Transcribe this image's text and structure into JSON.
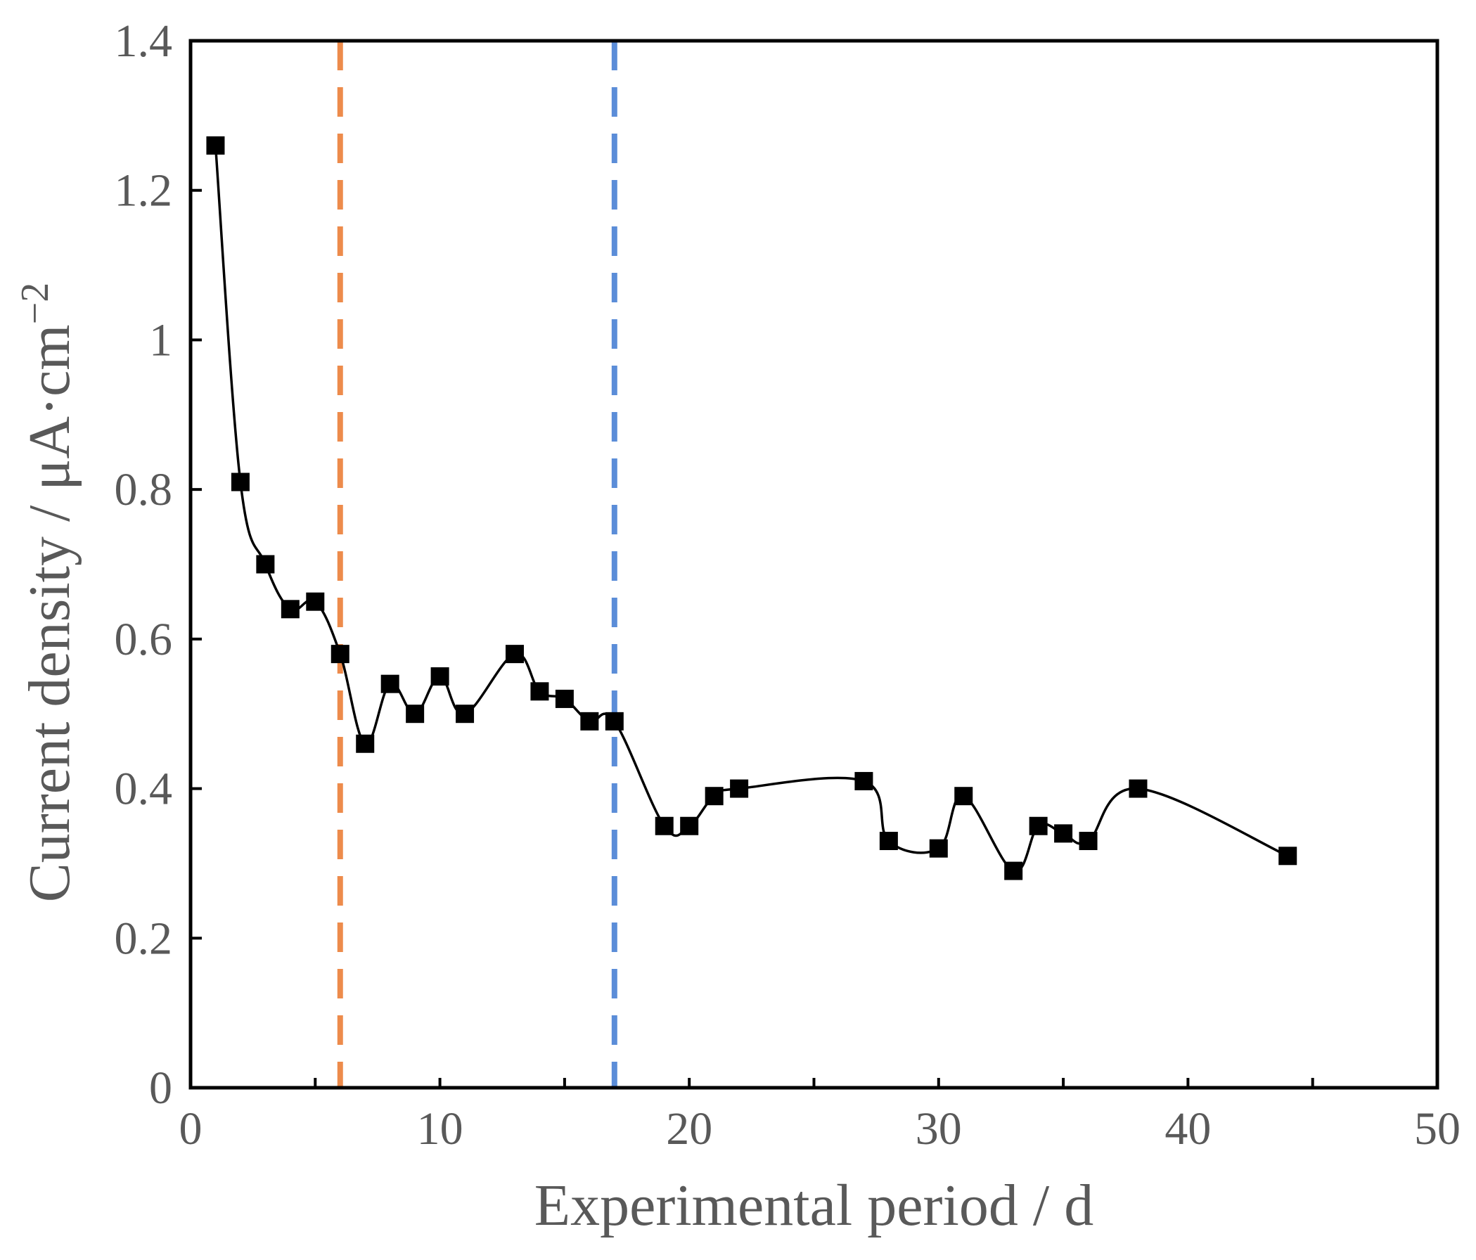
{
  "chart_data": {
    "type": "line",
    "title": "",
    "xlabel": "Experimental period / d",
    "ylabel_main": "Current density / μA·cm",
    "ylabel_superscript": "−2",
    "xlim": [
      0,
      50
    ],
    "ylim": [
      0,
      1.4
    ],
    "x_ticks": [
      0,
      10,
      20,
      30,
      40,
      50
    ],
    "x_tick_labels": [
      "0",
      "10",
      "20",
      "30",
      "40",
      "50"
    ],
    "x_minor_step": 5,
    "y_ticks": [
      0,
      0.2,
      0.4,
      0.6,
      0.8,
      1.0,
      1.2,
      1.4
    ],
    "y_tick_labels": [
      "0",
      "0.2",
      "0.4",
      "0.6",
      "0.8",
      "1",
      "1.2",
      "1.4"
    ],
    "grid": false,
    "legend": "none",
    "series": [
      {
        "name": "Current density",
        "marker": "square",
        "line": "smoothed",
        "color": "#000000",
        "x": [
          1,
          2,
          3,
          4,
          5,
          6,
          7,
          8,
          9,
          10,
          11,
          13,
          14,
          15,
          16,
          17,
          19,
          20,
          21,
          22,
          27,
          28,
          30,
          31,
          33,
          34,
          35,
          36,
          38,
          44
        ],
        "y": [
          1.26,
          0.81,
          0.7,
          0.64,
          0.65,
          0.58,
          0.46,
          0.54,
          0.5,
          0.55,
          0.5,
          0.58,
          0.53,
          0.52,
          0.49,
          0.49,
          0.35,
          0.35,
          0.39,
          0.4,
          0.41,
          0.33,
          0.32,
          0.39,
          0.29,
          0.35,
          0.34,
          0.33,
          0.4,
          0.31
        ]
      }
    ],
    "reference_lines": [
      {
        "x": 6,
        "color": "#ED8B4B",
        "style": "dashed"
      },
      {
        "x": 17,
        "color": "#5B8DD8",
        "style": "dashed"
      }
    ]
  }
}
